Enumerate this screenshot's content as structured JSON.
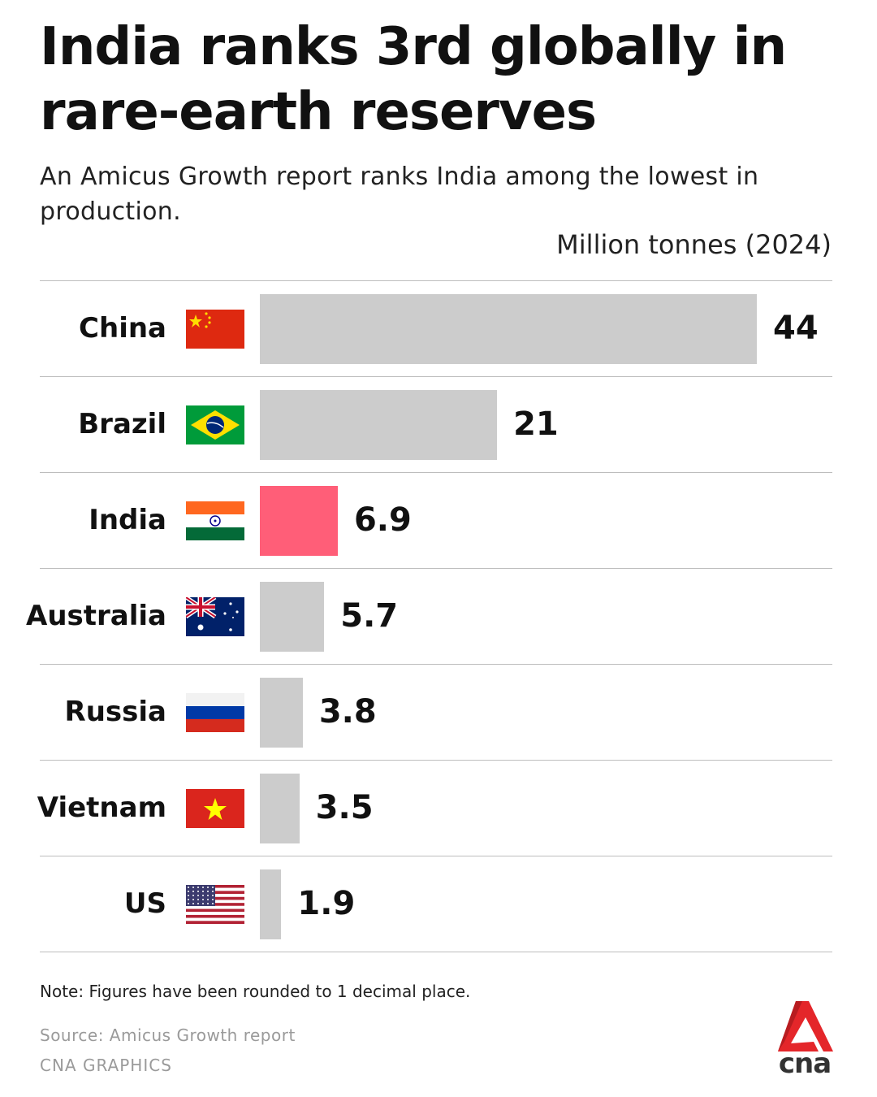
{
  "title": "India ranks 3rd globally in rare-earth reserves",
  "subtitle": "An Amicus Growth report ranks India among the lowest in production.",
  "note": "Note: Figures have been rounded to 1 decimal place.",
  "source": "Source: Amicus Growth report",
  "credit": "CNA GRAPHICS",
  "logo_text": "cna",
  "colors": {
    "bar": "#cccccc",
    "highlight": "#ff5e78",
    "logo": "#e4262a"
  },
  "chart_data": {
    "type": "bar",
    "orientation": "horizontal",
    "title": "India ranks 3rd globally in rare-earth reserves",
    "unit_label": "Million tonnes (2024)",
    "categories": [
      "China",
      "Brazil",
      "India",
      "Australia",
      "Russia",
      "Vietnam",
      "US"
    ],
    "values": [
      44,
      21,
      6.9,
      5.7,
      3.8,
      3.5,
      1.9
    ],
    "value_labels": [
      "44",
      "21",
      "6.9",
      "5.7",
      "3.8",
      "3.5",
      "1.9"
    ],
    "flags": [
      "china-flag-icon",
      "brazil-flag-icon",
      "india-flag-icon",
      "australia-flag-icon",
      "russia-flag-icon",
      "vietnam-flag-icon",
      "us-flag-icon"
    ],
    "highlight": "India",
    "xlim": [
      0,
      44
    ],
    "grid": false,
    "legend": "none"
  }
}
